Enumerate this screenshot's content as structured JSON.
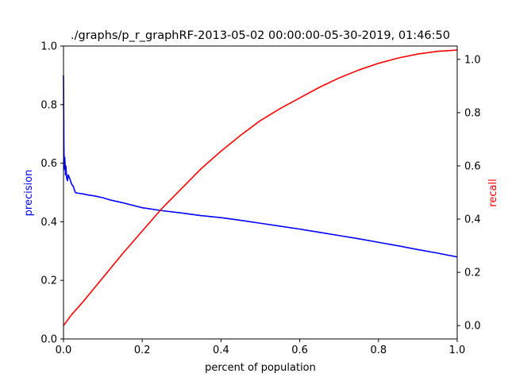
{
  "chart_data": {
    "type": "line",
    "title": "./graphs/p_r_graphRF-2013-05-02 00:00:00-05-30-2019, 01:46:50",
    "xlabel": "percent of population",
    "ylabel_left": "precision",
    "ylabel_right": "recall",
    "xlim": [
      0.0,
      1.0
    ],
    "ylim_left": [
      0.0,
      1.0
    ],
    "ylim_right": [
      -0.05,
      1.05
    ],
    "x_ticks": [
      "0.0",
      "0.2",
      "0.4",
      "0.6",
      "0.8",
      "1.0"
    ],
    "y_ticks_left": [
      "0.0",
      "0.2",
      "0.4",
      "0.6",
      "0.8",
      "1.0"
    ],
    "y_ticks_right": [
      "0.0",
      "0.2",
      "0.4",
      "0.6",
      "0.8",
      "1.0"
    ],
    "grid": false,
    "legend": "none",
    "colors": {
      "precision": "#0000ff",
      "recall": "#ff0000",
      "axis": "#000000",
      "ylabel_left": "#0000ff",
      "ylabel_right": "#ff0000"
    },
    "series": [
      {
        "axis": "left",
        "color": "#0000ff",
        "x": [
          0.0,
          0.001,
          0.002,
          0.003,
          0.004,
          0.005,
          0.006,
          0.008,
          0.01,
          0.012,
          0.015,
          0.018,
          0.02,
          0.025,
          0.03,
          0.035,
          0.04,
          0.05,
          0.06,
          0.08,
          0.1,
          0.12,
          0.15,
          0.2,
          0.25,
          0.3,
          0.35,
          0.4,
          0.45,
          0.5,
          0.55,
          0.6,
          0.65,
          0.7,
          0.75,
          0.8,
          0.85,
          0.9,
          0.95,
          1.0
        ],
        "y": [
          0.9,
          0.66,
          0.58,
          0.62,
          0.6,
          0.56,
          0.59,
          0.55,
          0.54,
          0.56,
          0.55,
          0.54,
          0.53,
          0.52,
          0.5,
          0.498,
          0.497,
          0.495,
          0.492,
          0.488,
          0.482,
          0.474,
          0.465,
          0.448,
          0.438,
          0.43,
          0.421,
          0.414,
          0.405,
          0.395,
          0.385,
          0.375,
          0.364,
          0.353,
          0.342,
          0.33,
          0.318,
          0.305,
          0.293,
          0.28
        ]
      },
      {
        "axis": "right",
        "color": "#ff0000",
        "x": [
          0.0,
          0.02,
          0.05,
          0.1,
          0.15,
          0.2,
          0.25,
          0.3,
          0.35,
          0.4,
          0.45,
          0.5,
          0.55,
          0.6,
          0.65,
          0.7,
          0.75,
          0.8,
          0.85,
          0.9,
          0.95,
          1.0
        ],
        "y": [
          0.0,
          0.04,
          0.09,
          0.18,
          0.27,
          0.355,
          0.44,
          0.515,
          0.59,
          0.655,
          0.715,
          0.77,
          0.815,
          0.855,
          0.895,
          0.93,
          0.96,
          0.985,
          1.005,
          1.02,
          1.03,
          1.035
        ]
      }
    ]
  }
}
